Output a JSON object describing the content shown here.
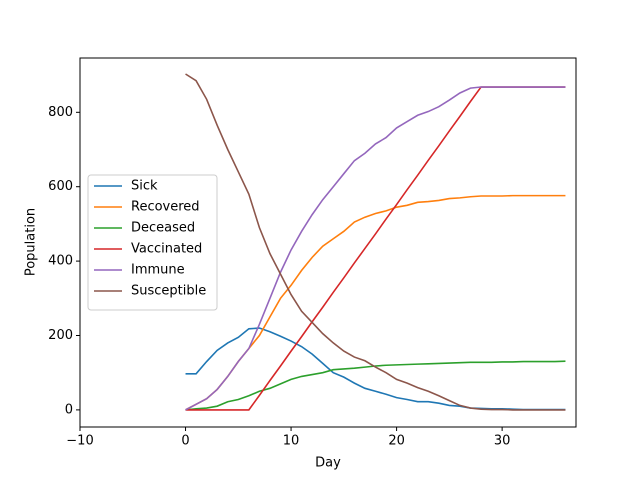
{
  "chart_data": {
    "type": "line",
    "x_label": "Day",
    "y_label": "Population",
    "x": [
      0,
      1,
      2,
      3,
      4,
      5,
      6,
      7,
      8,
      9,
      10,
      11,
      12,
      13,
      14,
      15,
      16,
      17,
      18,
      19,
      20,
      21,
      22,
      23,
      24,
      25,
      26,
      27,
      28,
      29,
      30,
      31,
      32,
      33,
      34,
      35,
      36
    ],
    "series": [
      {
        "name": "Sick",
        "color": "#1f77b4",
        "values": [
          97,
          97,
          130,
          160,
          180,
          195,
          218,
          220,
          210,
          198,
          185,
          170,
          150,
          125,
          100,
          88,
          72,
          58,
          50,
          42,
          33,
          28,
          22,
          22,
          18,
          12,
          10,
          5,
          4,
          3,
          3,
          2,
          1,
          1,
          1,
          1,
          1
        ]
      },
      {
        "name": "Recovered",
        "color": "#ff7f0e",
        "values": [
          0,
          15,
          30,
          55,
          90,
          130,
          165,
          200,
          250,
          300,
          335,
          375,
          410,
          440,
          460,
          480,
          505,
          518,
          528,
          535,
          545,
          550,
          558,
          560,
          563,
          568,
          570,
          573,
          575,
          575,
          575,
          576,
          576,
          576,
          576,
          576,
          576
        ]
      },
      {
        "name": "Deceased",
        "color": "#2ca02c",
        "values": [
          0,
          3,
          5,
          10,
          22,
          28,
          38,
          50,
          58,
          70,
          82,
          90,
          95,
          100,
          108,
          110,
          112,
          115,
          118,
          120,
          121,
          122,
          123,
          124,
          125,
          126,
          127,
          128,
          128,
          128,
          129,
          129,
          130,
          130,
          130,
          130,
          131
        ]
      },
      {
        "name": "Vaccinated",
        "color": "#d62728",
        "values": [
          0,
          0,
          0,
          0,
          0,
          0,
          0,
          39,
          79,
          118,
          158,
          197,
          237,
          276,
          316,
          355,
          395,
          434,
          473,
          513,
          552,
          592,
          631,
          671,
          710,
          750,
          789,
          829,
          868,
          868,
          868,
          868,
          868,
          868,
          868,
          868,
          868
        ]
      },
      {
        "name": "Immune",
        "color": "#9467bd",
        "values": [
          0,
          15,
          30,
          55,
          90,
          130,
          165,
          230,
          300,
          370,
          430,
          480,
          525,
          565,
          600,
          635,
          670,
          690,
          715,
          732,
          758,
          775,
          792,
          802,
          815,
          833,
          852,
          865,
          868,
          868,
          868,
          868,
          868,
          868,
          868,
          868,
          868
        ]
      },
      {
        "name": "Susceptible",
        "color": "#8c564b",
        "values": [
          903,
          885,
          835,
          765,
          700,
          640,
          580,
          490,
          420,
          365,
          310,
          265,
          235,
          205,
          180,
          158,
          142,
          132,
          115,
          100,
          82,
          72,
          60,
          50,
          38,
          25,
          12,
          5,
          2,
          1,
          1,
          0,
          0,
          0,
          0,
          0,
          0
        ]
      }
    ],
    "xlim": [
      -10,
      37
    ],
    "ylim": [
      -46,
      946
    ],
    "xticks": [
      {
        "value": -10,
        "label": "−10"
      },
      0,
      10,
      20,
      30
    ],
    "yticks": [
      0,
      200,
      400,
      600,
      800
    ],
    "legend": "center left"
  }
}
